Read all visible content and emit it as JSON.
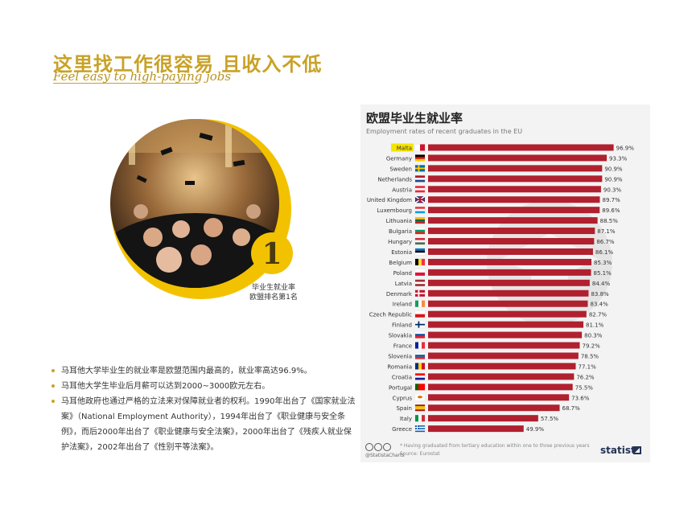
{
  "header": {
    "title_cn": "这里找工作很容易 且收入不低",
    "title_en": "Feel easy to high-paying jobs"
  },
  "photo": {
    "badge_number": "1",
    "caption": [
      "毕业生就业率",
      "欧盟排名第1名"
    ]
  },
  "bullets": [
    "马耳他大学毕业生的就业率是欧盟范围内最高的，就业率高达96.9%。",
    "马耳他大学生毕业后月薪可以达到2000~3000欧元左右。",
    "马耳他政府也通过严格的立法来对保障就业者的权利。1990年出台了《国家就业法案》（National Employment Authority），1994年出台了《职业健康与安全条例》，而后2000年出台了《职业健康与安全法案》，2000年出台了《残疾人就业保护法案》，2002年出台了《性别平等法案》。"
  ],
  "chart_data": {
    "type": "bar",
    "orientation": "horizontal",
    "title": "欧盟毕业生就业率",
    "subtitle": "Employment rates of recent graduates in the EU",
    "categories": [
      "Malta",
      "Germany",
      "Sweden",
      "Netherlands",
      "Austria",
      "United Kingdom",
      "Luxembourg",
      "Lithuania",
      "Bulgaria",
      "Hungary",
      "Estonia",
      "Belgium",
      "Poland",
      "Latvia",
      "Denmark",
      "Ireland",
      "Czech Republic",
      "Finland",
      "Slovakia",
      "France",
      "Slovenia",
      "Romania",
      "Croatia",
      "Portugal",
      "Cyprus",
      "Spain",
      "Italy",
      "Greece"
    ],
    "values": [
      96.9,
      93.3,
      90.9,
      90.9,
      90.3,
      89.7,
      89.6,
      88.5,
      87.1,
      86.7,
      86.1,
      85.3,
      85.1,
      84.4,
      83.8,
      83.4,
      82.7,
      81.1,
      80.3,
      79.2,
      78.5,
      77.1,
      76.2,
      75.5,
      73.6,
      68.7,
      57.5,
      49.9
    ],
    "value_labels": [
      "96.9%",
      "93.3%",
      "90.9%",
      "90.9%",
      "90.3%",
      "89.7%",
      "89.6%",
      "88.5%",
      "87.1%",
      "86.7%",
      "86.1%",
      "85.3%",
      "85.1%",
      "84.4%",
      "83.8%",
      "83.4%",
      "82.7%",
      "81.1%",
      "80.3%",
      "79.2%",
      "78.5%",
      "77.1%",
      "76.2%",
      "75.5%",
      "73.6%",
      "68.7%",
      "57.5%",
      "49.9%"
    ],
    "highlight": "Malta",
    "xlim": [
      0,
      100
    ],
    "bar_color": "#b0202e",
    "highlight_label_bg": "#f5e400",
    "flags": [
      {
        "type": "v",
        "colors": [
          "#ffffff",
          "#cf142b"
        ]
      },
      {
        "type": "h",
        "colors": [
          "#000000",
          "#dd0000",
          "#ffce00"
        ]
      },
      {
        "type": "nordic",
        "colors": [
          "#006aa7",
          "#fecc00"
        ]
      },
      {
        "type": "h",
        "colors": [
          "#ae1c28",
          "#ffffff",
          "#21468b"
        ]
      },
      {
        "type": "h",
        "colors": [
          "#ed2939",
          "#ffffff",
          "#ed2939"
        ]
      },
      {
        "type": "uk",
        "colors": [
          "#012169",
          "#ffffff",
          "#c8102e"
        ]
      },
      {
        "type": "h",
        "colors": [
          "#ef3340",
          "#ffffff",
          "#00a3e0"
        ]
      },
      {
        "type": "h",
        "colors": [
          "#fdb913",
          "#006a44",
          "#c1272d"
        ]
      },
      {
        "type": "h",
        "colors": [
          "#ffffff",
          "#00966e",
          "#d62612"
        ]
      },
      {
        "type": "h",
        "colors": [
          "#ce2939",
          "#ffffff",
          "#477050"
        ]
      },
      {
        "type": "h",
        "colors": [
          "#0072ce",
          "#000000",
          "#ffffff"
        ]
      },
      {
        "type": "v",
        "colors": [
          "#000000",
          "#fdda24",
          "#ef3340"
        ]
      },
      {
        "type": "h",
        "colors": [
          "#ffffff",
          "#dc143c"
        ]
      },
      {
        "type": "h",
        "colors": [
          "#9e3039",
          "#ffffff",
          "#9e3039"
        ]
      },
      {
        "type": "nordic",
        "colors": [
          "#c8102e",
          "#ffffff"
        ]
      },
      {
        "type": "v",
        "colors": [
          "#169b62",
          "#ffffff",
          "#ff883e"
        ]
      },
      {
        "type": "h",
        "colors": [
          "#ffffff",
          "#d7141a"
        ]
      },
      {
        "type": "nordic",
        "colors": [
          "#ffffff",
          "#002f6c"
        ]
      },
      {
        "type": "h",
        "colors": [
          "#ffffff",
          "#0b4ea2",
          "#ee1c25"
        ]
      },
      {
        "type": "v",
        "colors": [
          "#002395",
          "#ffffff",
          "#ed2939"
        ]
      },
      {
        "type": "h",
        "colors": [
          "#ffffff",
          "#005da4",
          "#ed1c24"
        ]
      },
      {
        "type": "v",
        "colors": [
          "#002b7f",
          "#fcd116",
          "#ce1126"
        ]
      },
      {
        "type": "h",
        "colors": [
          "#ff0000",
          "#ffffff",
          "#171796"
        ]
      },
      {
        "type": "v",
        "colors": [
          "#006600",
          "#ff0000",
          "#ff0000"
        ]
      },
      {
        "type": "cyprus",
        "colors": [
          "#ffffff",
          "#d57800"
        ]
      },
      {
        "type": "h",
        "colors": [
          "#aa151b",
          "#f1bf00",
          "#f1bf00",
          "#aa151b"
        ]
      },
      {
        "type": "v",
        "colors": [
          "#009246",
          "#ffffff",
          "#ce2b37"
        ]
      },
      {
        "type": "greece",
        "colors": [
          "#0d5eaf",
          "#ffffff"
        ]
      }
    ]
  },
  "footer": {
    "handle": "@StatistaCharts",
    "note": "* Having graduated from tertiary education within one to three previous years",
    "source": "Source: Eurostat",
    "brand": "statista"
  }
}
